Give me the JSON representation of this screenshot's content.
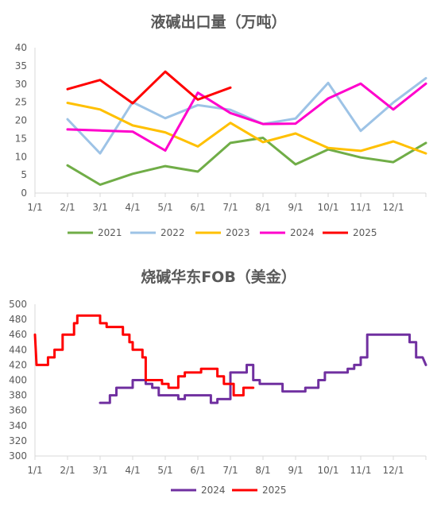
{
  "chart_data": [
    {
      "type": "line",
      "title": "液碱出口量（万吨）",
      "categories": [
        "1/1",
        "2/1",
        "3/1",
        "4/1",
        "5/1",
        "6/1",
        "7/1",
        "8/1",
        "9/1",
        "10/1",
        "11/1",
        "12/1"
      ],
      "ylim": [
        0,
        40
      ],
      "yticks": [
        0,
        5,
        10,
        15,
        20,
        25,
        30,
        35,
        40
      ],
      "grid": false,
      "legend": "bottom",
      "series": [
        {
          "name": "2021",
          "color": "#70AD47",
          "x": [
            1,
            2,
            3,
            4,
            5,
            6,
            7,
            8,
            9,
            10,
            11,
            12
          ],
          "values": [
            7.6,
            2.3,
            5.3,
            7.4,
            5.9,
            13.8,
            15.2,
            7.9,
            12.0,
            9.8,
            8.5,
            13.8
          ]
        },
        {
          "name": "2022",
          "color": "#9DC3E6",
          "x": [
            1,
            2,
            3,
            4,
            5,
            6,
            7,
            8,
            9,
            10,
            11,
            12
          ],
          "values": [
            20.3,
            10.9,
            25.0,
            20.6,
            24.2,
            22.9,
            19.0,
            20.5,
            30.3,
            17.1,
            24.9,
            31.6
          ]
        },
        {
          "name": "2023",
          "color": "#FFC000",
          "x": [
            1,
            2,
            3,
            4,
            5,
            6,
            7,
            8,
            9,
            10,
            11,
            12
          ],
          "values": [
            24.8,
            23.0,
            18.6,
            16.7,
            12.8,
            19.3,
            14.0,
            16.4,
            12.4,
            11.6,
            14.2,
            10.9
          ]
        },
        {
          "name": "2024",
          "color": "#FF00CC",
          "x": [
            1,
            2,
            3,
            4,
            5,
            6,
            7,
            8,
            9,
            10,
            11,
            12
          ],
          "values": [
            17.5,
            17.2,
            16.9,
            11.7,
            27.6,
            22.0,
            19.0,
            19.1,
            26.0,
            30.1,
            23.0,
            30.1
          ]
        },
        {
          "name": "2025",
          "color": "#FF0000",
          "x": [
            1,
            2,
            3,
            4,
            5,
            6
          ],
          "values": [
            28.6,
            31.1,
            24.7,
            33.4,
            25.7,
            29.0
          ]
        }
      ]
    },
    {
      "type": "line",
      "title": "烧碱华东FOB（美金）",
      "categories": [
        "1/1",
        "2/1",
        "3/1",
        "4/1",
        "5/1",
        "6/1",
        "7/1",
        "8/1",
        "9/1",
        "10/1",
        "11/1",
        "12/1"
      ],
      "ylim": [
        300,
        500
      ],
      "yticks": [
        300,
        320,
        340,
        360,
        380,
        400,
        420,
        440,
        460,
        480,
        500
      ],
      "grid": false,
      "legend": "bottom",
      "series": [
        {
          "name": "2024",
          "color": "#7030A0",
          "points": [
            [
              2.0,
              370
            ],
            [
              2.3,
              370
            ],
            [
              2.3,
              380
            ],
            [
              2.5,
              380
            ],
            [
              2.5,
              390
            ],
            [
              3.0,
              390
            ],
            [
              3.0,
              400
            ],
            [
              3.4,
              400
            ],
            [
              3.4,
              395
            ],
            [
              3.6,
              395
            ],
            [
              3.6,
              390
            ],
            [
              3.8,
              390
            ],
            [
              3.8,
              380
            ],
            [
              4.4,
              380
            ],
            [
              4.4,
              375
            ],
            [
              4.6,
              375
            ],
            [
              4.6,
              380
            ],
            [
              5.4,
              380
            ],
            [
              5.4,
              370
            ],
            [
              5.6,
              370
            ],
            [
              5.6,
              375
            ],
            [
              6.0,
              375
            ],
            [
              6.0,
              410
            ],
            [
              6.5,
              410
            ],
            [
              6.5,
              420
            ],
            [
              6.7,
              420
            ],
            [
              6.7,
              400
            ],
            [
              6.9,
              400
            ],
            [
              6.9,
              395
            ],
            [
              7.6,
              395
            ],
            [
              7.6,
              385
            ],
            [
              8.3,
              385
            ],
            [
              8.3,
              390
            ],
            [
              8.7,
              390
            ],
            [
              8.7,
              400
            ],
            [
              8.9,
              400
            ],
            [
              8.9,
              410
            ],
            [
              9.6,
              410
            ],
            [
              9.6,
              415
            ],
            [
              9.8,
              415
            ],
            [
              9.8,
              420
            ],
            [
              10.0,
              420
            ],
            [
              10.0,
              430
            ],
            [
              10.2,
              430
            ],
            [
              10.2,
              460
            ],
            [
              11.5,
              460
            ],
            [
              11.5,
              450
            ],
            [
              11.7,
              450
            ],
            [
              11.7,
              430
            ],
            [
              11.9,
              430
            ],
            [
              12.0,
              420
            ]
          ]
        },
        {
          "name": "2025",
          "color": "#FF0000",
          "points": [
            [
              0,
              460
            ],
            [
              0.05,
              420
            ],
            [
              0.4,
              420
            ],
            [
              0.4,
              430
            ],
            [
              0.6,
              430
            ],
            [
              0.6,
              440
            ],
            [
              0.85,
              440
            ],
            [
              0.85,
              460
            ],
            [
              1.2,
              460
            ],
            [
              1.2,
              475
            ],
            [
              1.3,
              475
            ],
            [
              1.3,
              485
            ],
            [
              2.0,
              485
            ],
            [
              2.0,
              475
            ],
            [
              2.2,
              475
            ],
            [
              2.2,
              470
            ],
            [
              2.7,
              470
            ],
            [
              2.7,
              460
            ],
            [
              2.9,
              460
            ],
            [
              2.9,
              450
            ],
            [
              3.0,
              450
            ],
            [
              3.0,
              440
            ],
            [
              3.3,
              440
            ],
            [
              3.3,
              430
            ],
            [
              3.4,
              430
            ],
            [
              3.4,
              400
            ],
            [
              3.9,
              400
            ],
            [
              3.9,
              395
            ],
            [
              4.1,
              395
            ],
            [
              4.1,
              390
            ],
            [
              4.4,
              390
            ],
            [
              4.4,
              405
            ],
            [
              4.6,
              405
            ],
            [
              4.6,
              410
            ],
            [
              5.1,
              410
            ],
            [
              5.1,
              415
            ],
            [
              5.6,
              415
            ],
            [
              5.6,
              405
            ],
            [
              5.8,
              405
            ],
            [
              5.8,
              395
            ],
            [
              6.1,
              395
            ],
            [
              6.1,
              380
            ],
            [
              6.4,
              380
            ],
            [
              6.4,
              390
            ],
            [
              6.7,
              390
            ]
          ]
        }
      ]
    }
  ]
}
